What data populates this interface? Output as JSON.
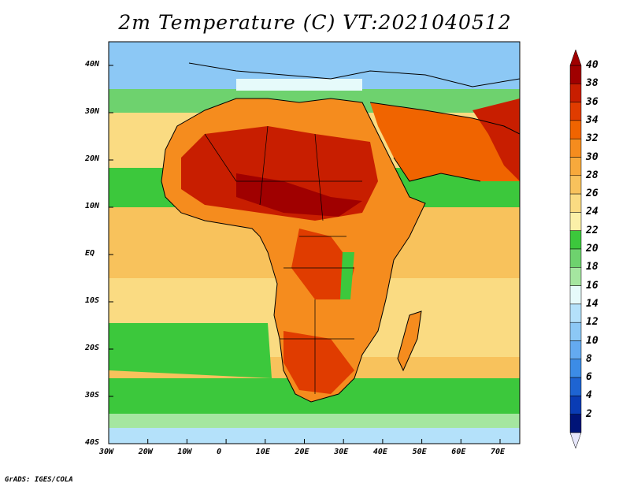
{
  "title": "2m Temperature (C) VT:2021040512",
  "credit": "GrADS: IGES/COLA",
  "map": {
    "region": "Africa and surrounding oceans",
    "lon_labels": [
      "30W",
      "20W",
      "10W",
      "0",
      "10E",
      "20E",
      "30E",
      "40E",
      "50E",
      "60E",
      "70E"
    ],
    "lat_labels": [
      "40N",
      "30N",
      "20N",
      "10N",
      "EQ",
      "10S",
      "20S",
      "30S",
      "40S"
    ]
  },
  "colorbar": {
    "labels": [
      "40",
      "38",
      "36",
      "34",
      "32",
      "30",
      "28",
      "26",
      "24",
      "22",
      "20",
      "18",
      "16",
      "14",
      "12",
      "10",
      "8",
      "6",
      "4",
      "2"
    ],
    "colors": [
      "#a00000",
      "#c81e00",
      "#e03c00",
      "#f06400",
      "#f58c1e",
      "#f7a93c",
      "#f8c25c",
      "#fadb82",
      "#fbf0a8",
      "#3cc83c",
      "#6ed26e",
      "#a5e6a0",
      "#e6fafa",
      "#b4e1fa",
      "#8cc8f5",
      "#64aaf0",
      "#3c8ce6",
      "#1e64d2",
      "#0a3cb4",
      "#001478"
    ]
  }
}
